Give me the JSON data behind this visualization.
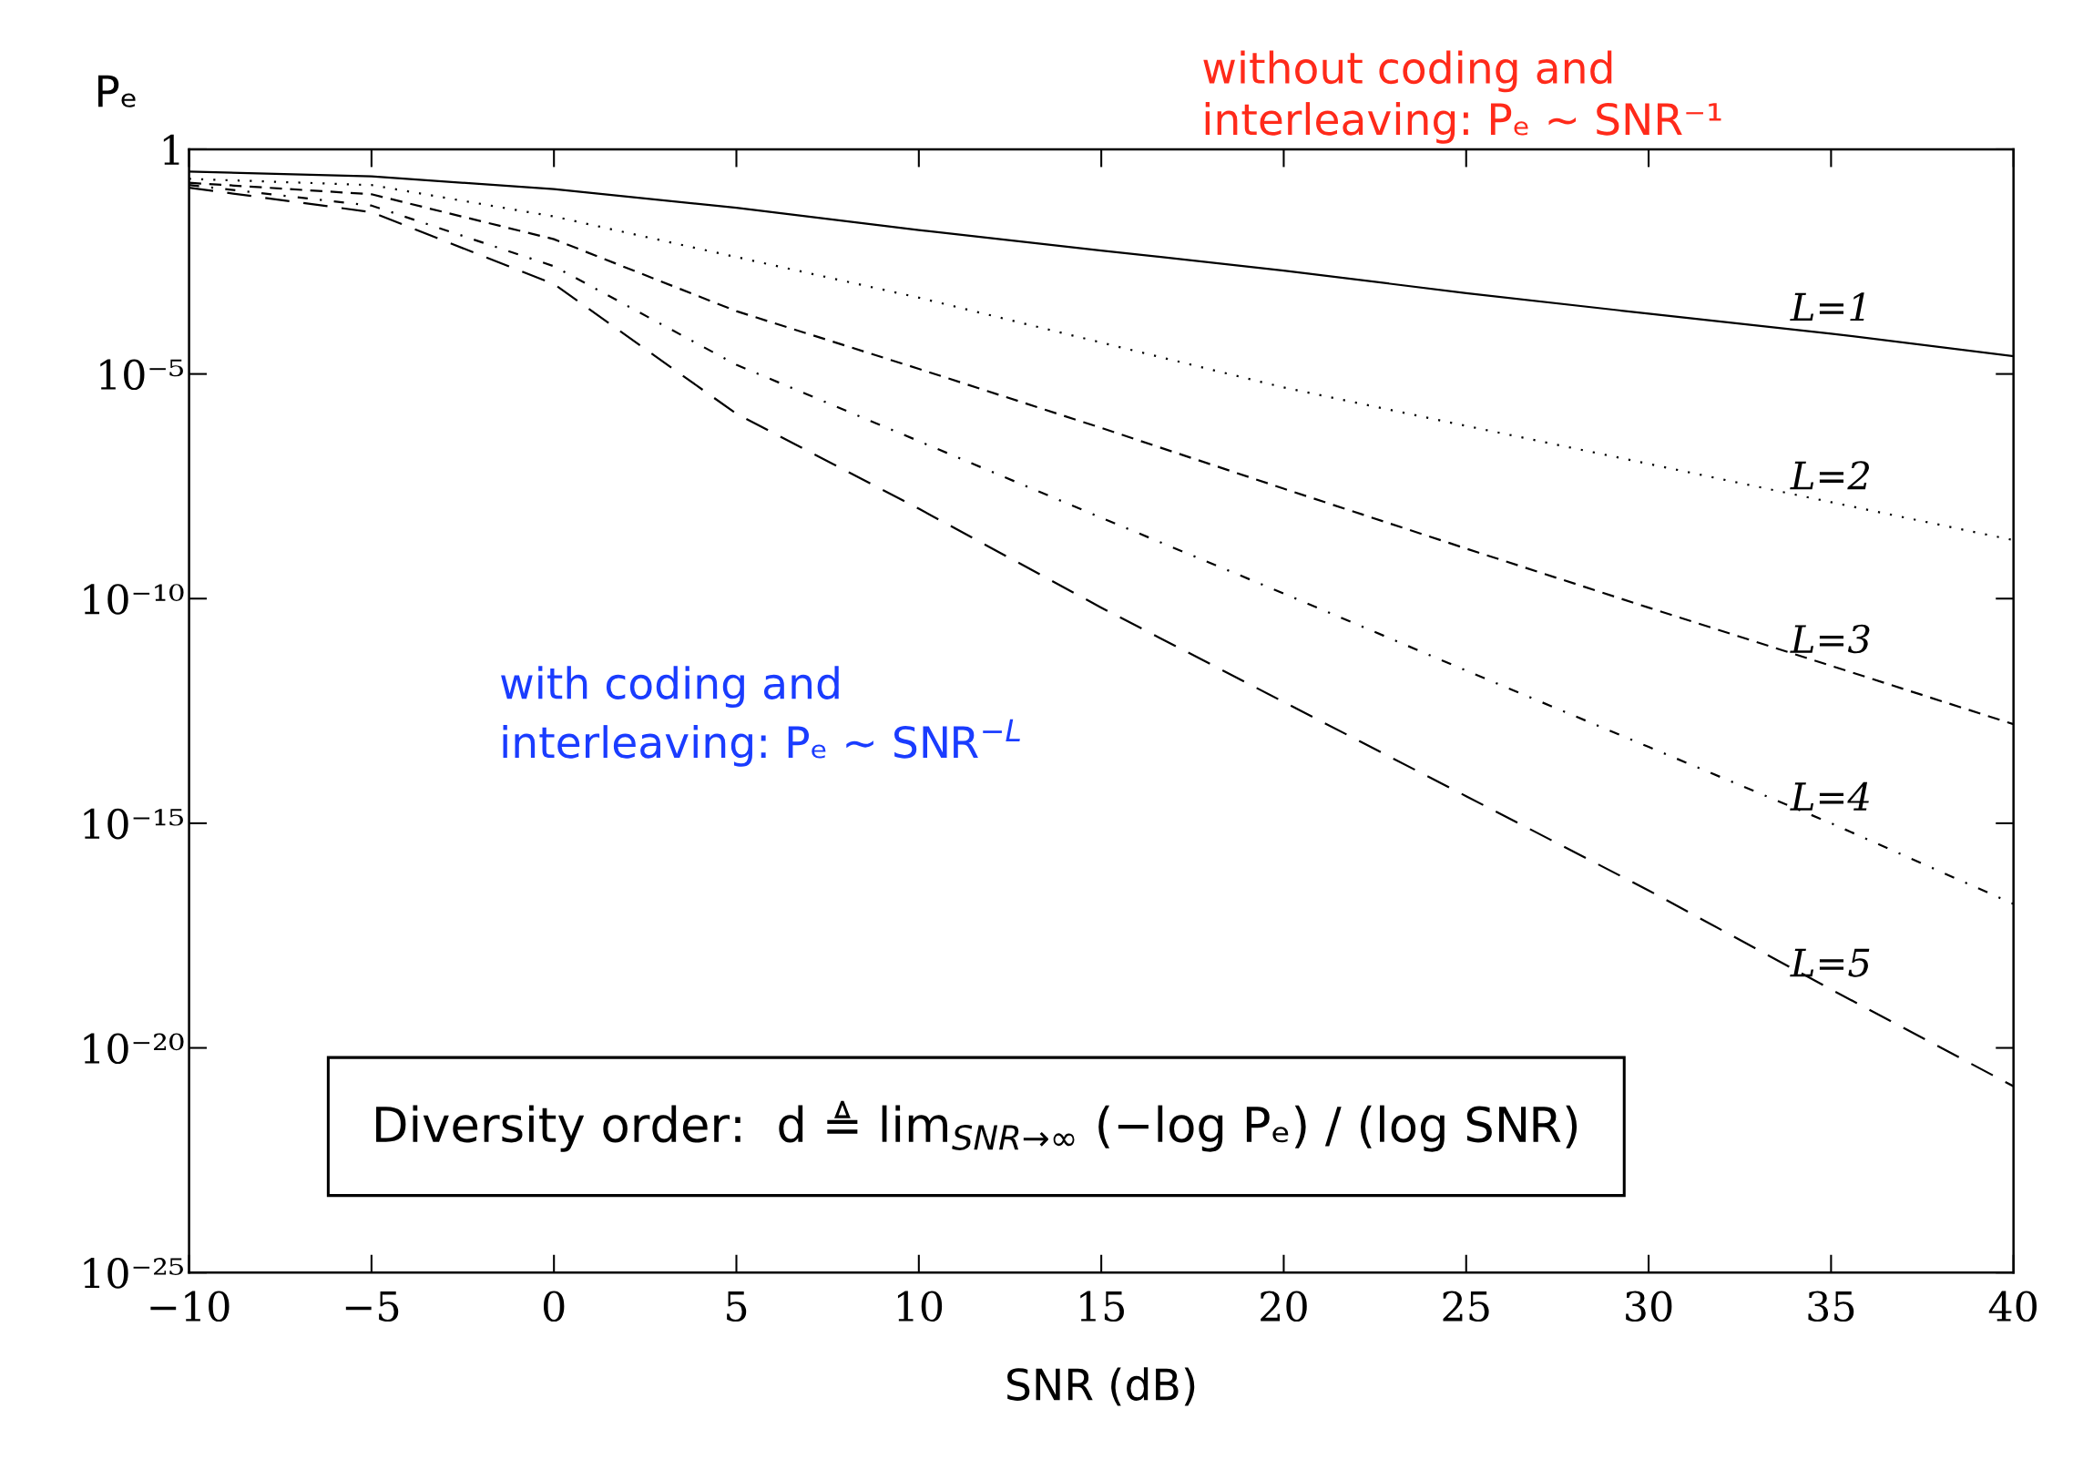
{
  "chart_data": {
    "type": "line",
    "xlabel": "SNR (dB)",
    "ylabel": "Pₑ",
    "log": "y",
    "x": [
      -10,
      -5,
      0,
      5,
      10,
      15,
      20,
      25,
      30,
      35,
      40
    ],
    "series": [
      {
        "name": "L=1",
        "color": "#000000",
        "line_style": "solid",
        "values": [
          0.32,
          0.25,
          0.13,
          0.05,
          0.016,
          0.0056,
          0.002,
          0.00063,
          0.00022,
          7.9e-05,
          2.5e-05
        ]
      },
      {
        "name": "L=2",
        "color": "#000000",
        "line_style": "dotted",
        "values": [
          0.22,
          0.16,
          0.032,
          0.004,
          0.0005,
          5e-05,
          5e-06,
          7e-07,
          1e-07,
          1.4e-08,
          2e-09
        ]
      },
      {
        "name": "L=3",
        "color": "#000000",
        "line_style": "dashed",
        "values": [
          0.18,
          0.1,
          0.01,
          0.00025,
          1.3e-05,
          6.3e-07,
          2.8e-08,
          1.3e-09,
          6.3e-11,
          3.2e-12,
          1.6e-13
        ]
      },
      {
        "name": "L=4",
        "color": "#000000",
        "line_style": "dashdot",
        "values": [
          0.16,
          0.056,
          0.0025,
          1.6e-05,
          3.2e-07,
          6.3e-09,
          1.3e-10,
          2.5e-12,
          5e-14,
          1e-15,
          1.6e-17
        ]
      },
      {
        "name": "L=5",
        "color": "#000000",
        "line_style": "longdash",
        "values": [
          0.14,
          0.04,
          0.001,
          1.3e-06,
          1e-08,
          6.3e-11,
          5e-13,
          4e-15,
          3.2e-17,
          2e-19,
          1.4e-21
        ]
      }
    ],
    "xlim": [
      -10,
      40
    ],
    "xticks": [
      {
        "value": -10,
        "label": "−10"
      },
      {
        "value": -5,
        "label": "−5"
      },
      0,
      5,
      10,
      15,
      20,
      25,
      30,
      35,
      40
    ],
    "ylim": [
      1e-25,
      1
    ],
    "yticks": [
      {
        "value": 1e-25,
        "label": "10⁻²⁵"
      },
      {
        "value": 1e-20,
        "label": "10⁻²⁰"
      },
      {
        "value": 1e-15,
        "label": "10⁻¹⁵"
      },
      {
        "value": 1e-10,
        "label": "10⁻¹⁰"
      },
      {
        "value": 1e-05,
        "label": "10⁻⁵"
      },
      {
        "value": 1,
        "label": "1"
      }
    ],
    "grid": false,
    "legend": false,
    "marker": "none",
    "annotations": [
      "without coding and\ninterleaving: Pₑ ∼ SNR⁻¹",
      "with coding and\ninterleaving: Pₑ ∼ SNR$^{−L}$",
      "Diversity order:  d ≜ lim$_{SNR→∞}$ (−log Pₑ) / (log SNR)"
    ]
  }
}
